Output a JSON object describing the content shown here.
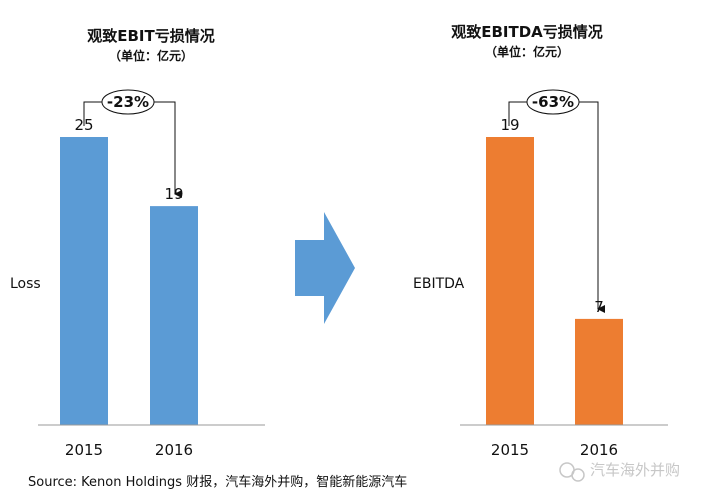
{
  "charts": [
    {
      "title": "观致EBIT亏损情况",
      "subtitle": "（单位：亿元）",
      "axis_label": "Loss",
      "change_label": "-23%",
      "bar_color": "#5B9BD5"
    },
    {
      "title": "观致EBITDA亏损情况",
      "subtitle": "（单位：亿元）",
      "axis_label": "EBITDA",
      "change_label": "-63%",
      "bar_color": "#ED7D31"
    }
  ],
  "chart_data": [
    {
      "type": "bar",
      "title": "观致EBIT亏损情况",
      "subtitle": "（单位：亿元）",
      "ylabel": "Loss",
      "categories": [
        "2015",
        "2016"
      ],
      "values": [
        25,
        19
      ],
      "ylim": [
        0,
        25
      ],
      "annotation": "-23%"
    },
    {
      "type": "bar",
      "title": "观致EBITDA亏损情况",
      "subtitle": "（单位：亿元）",
      "ylabel": "EBITDA",
      "categories": [
        "2015",
        "2016"
      ],
      "values": [
        19,
        7
      ],
      "ylim": [
        0,
        19
      ],
      "annotation": "-63%"
    }
  ],
  "arrow_color": "#5B9BD5",
  "source": "Source: Kenon Holdings 财报，汽车海外并购，智能新能源汽车",
  "watermark": "汽车海外并购"
}
